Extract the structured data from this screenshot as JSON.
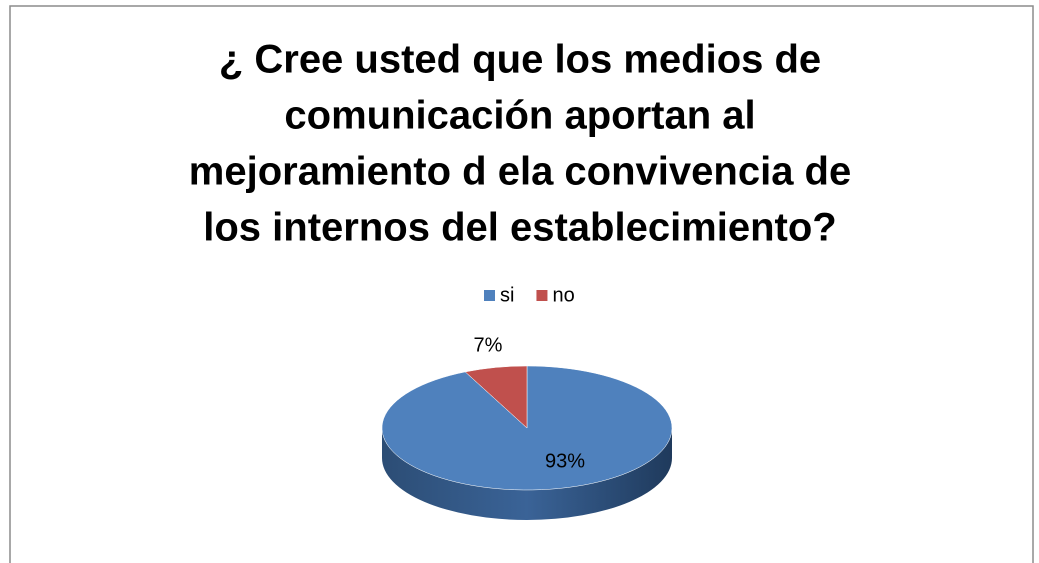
{
  "chart_data": {
    "type": "pie3d",
    "title": [
      "¿ Cree usted que los medios de",
      "comunicación aportan al",
      "mejoramiento d ela convivencia de",
      "los internos del establecimiento?"
    ],
    "categories": [
      "si",
      "no"
    ],
    "values": [
      93,
      7
    ],
    "value_labels": [
      "93%",
      "7%"
    ],
    "colors": [
      "#4f81bd",
      "#c0504d"
    ],
    "legend": "top"
  }
}
